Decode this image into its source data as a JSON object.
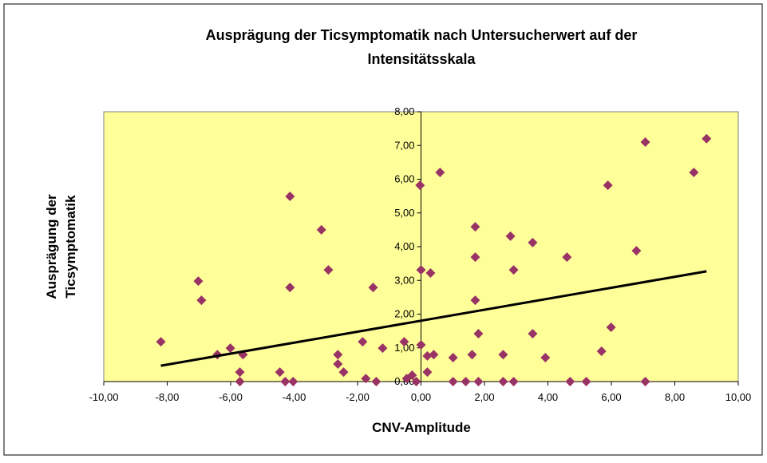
{
  "chart_data": {
    "type": "scatter",
    "title": [
      "Ausprägung der Ticsymptomatik nach Untersucherwert auf der",
      "Intensitätsskala"
    ],
    "x_label": "CNV-Amplitude",
    "y_label": [
      "Ausprägung der",
      "Ticsymptomatik"
    ],
    "xlim": [
      -10,
      10
    ],
    "ylim": [
      0,
      8
    ],
    "xticks": [
      {
        "value": -10,
        "label": "-10,00"
      },
      {
        "value": -8,
        "label": "-8,00"
      },
      {
        "value": -6,
        "label": "-6,00"
      },
      {
        "value": -4,
        "label": "-4,00"
      },
      {
        "value": -2,
        "label": "-2,00"
      },
      {
        "value": 0,
        "label": "0,00"
      },
      {
        "value": 2,
        "label": "2,00"
      },
      {
        "value": 4,
        "label": "4,00"
      },
      {
        "value": 6,
        "label": "6,00"
      },
      {
        "value": 8,
        "label": "8,00"
      },
      {
        "value": 10,
        "label": "10,00"
      }
    ],
    "yticks": [
      {
        "value": 0,
        "label": "0,00"
      },
      {
        "value": 1,
        "label": "1,00"
      },
      {
        "value": 2,
        "label": "2,00"
      },
      {
        "value": 3,
        "label": "3,00"
      },
      {
        "value": 4,
        "label": "4,00"
      },
      {
        "value": 5,
        "label": "5,00"
      },
      {
        "value": 6,
        "label": "6,00"
      },
      {
        "value": 7,
        "label": "7,00"
      },
      {
        "value": 8,
        "label": "8,00"
      }
    ],
    "color": "#993366",
    "plot_background": "#ffff99",
    "x": [
      -8.2,
      -7.02,
      -6.92,
      -6.42,
      -6.01,
      -5.71,
      -5.71,
      -5.61,
      -4.45,
      -4.28,
      -4.13,
      -4.13,
      -4.03,
      -3.14,
      -2.92,
      -2.62,
      -2.62,
      -2.44,
      -1.84,
      -1.74,
      -1.51,
      -1.41,
      -1.21,
      -0.53,
      -0.45,
      -0.28,
      -0.15,
      -0.03,
      0,
      0,
      0.2,
      0.2,
      0.3,
      0.4,
      0.6,
      1.01,
      1.01,
      1.41,
      1.61,
      1.71,
      1.71,
      1.71,
      1.81,
      1.81,
      2.59,
      2.59,
      2.82,
      2.92,
      2.92,
      3.52,
      3.52,
      3.92,
      4.6,
      4.7,
      5.21,
      5.69,
      5.89,
      5.99,
      6.79,
      7.07,
      7.07,
      8.6,
      9.0
    ],
    "values": [
      1.18,
      2.98,
      2.41,
      0.8,
      0.99,
      0.28,
      0,
      0.8,
      0.28,
      0,
      5.49,
      2.79,
      0,
      4.5,
      3.31,
      0.8,
      0.52,
      0.28,
      1.18,
      0.09,
      2.79,
      0,
      0.99,
      1.18,
      0.09,
      0.19,
      0,
      5.82,
      3.31,
      1.09,
      0.76,
      0.28,
      3.22,
      0.8,
      6.2,
      0.71,
      0,
      0,
      0.8,
      4.59,
      3.69,
      2.41,
      1.42,
      0,
      0.8,
      0,
      4.31,
      3.31,
      0,
      4.12,
      1.42,
      0.71,
      3.69,
      0,
      0,
      0.9,
      5.82,
      1.61,
      3.88,
      7.1,
      0,
      6.2,
      7.2
    ],
    "trendline": {
      "x": [
        -8.2,
        9.0
      ],
      "y": [
        0.47,
        3.27
      ],
      "color": "#000000"
    }
  }
}
